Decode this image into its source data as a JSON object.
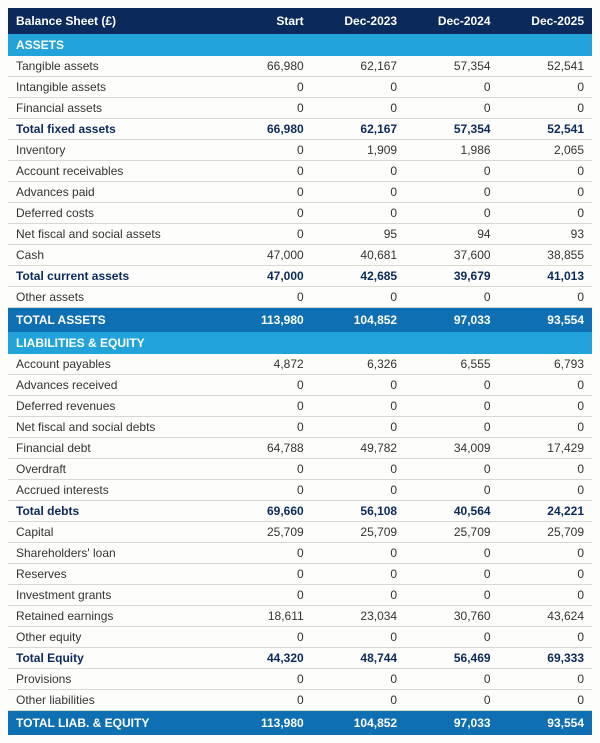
{
  "title": "Balance Sheet (£)",
  "columns": [
    "Start",
    "Dec-2023",
    "Dec-2024",
    "Dec-2025"
  ],
  "colors": {
    "header_bg": "#0b2a5b",
    "section_bg": "#22a3d9",
    "total_bg": "#0e6fb3",
    "subtotal_text": "#0b2a5b",
    "border": "#d8d8d0",
    "page_bg": "#fdfdfb"
  },
  "rows": [
    {
      "type": "section",
      "label": "ASSETS"
    },
    {
      "type": "data",
      "label": "Tangible assets",
      "v": [
        "66,980",
        "62,167",
        "57,354",
        "52,541"
      ]
    },
    {
      "type": "data",
      "label": "Intangible assets",
      "v": [
        "0",
        "0",
        "0",
        "0"
      ]
    },
    {
      "type": "data",
      "label": "Financial assets",
      "v": [
        "0",
        "0",
        "0",
        "0"
      ]
    },
    {
      "type": "subtotal",
      "label": "Total fixed assets",
      "v": [
        "66,980",
        "62,167",
        "57,354",
        "52,541"
      ]
    },
    {
      "type": "data",
      "label": "Inventory",
      "v": [
        "0",
        "1,909",
        "1,986",
        "2,065"
      ]
    },
    {
      "type": "data",
      "label": "Account receivables",
      "v": [
        "0",
        "0",
        "0",
        "0"
      ]
    },
    {
      "type": "data",
      "label": "Advances paid",
      "v": [
        "0",
        "0",
        "0",
        "0"
      ]
    },
    {
      "type": "data",
      "label": "Deferred costs",
      "v": [
        "0",
        "0",
        "0",
        "0"
      ]
    },
    {
      "type": "data",
      "label": "Net fiscal and social assets",
      "v": [
        "0",
        "95",
        "94",
        "93"
      ]
    },
    {
      "type": "data",
      "label": "Cash",
      "v": [
        "47,000",
        "40,681",
        "37,600",
        "38,855"
      ]
    },
    {
      "type": "subtotal",
      "label": "Total current assets",
      "v": [
        "47,000",
        "42,685",
        "39,679",
        "41,013"
      ]
    },
    {
      "type": "data",
      "label": "Other assets",
      "v": [
        "0",
        "0",
        "0",
        "0"
      ]
    },
    {
      "type": "total",
      "label": "TOTAL ASSETS",
      "v": [
        "113,980",
        "104,852",
        "97,033",
        "93,554"
      ]
    },
    {
      "type": "section",
      "label": "LIABILITIES & EQUITY"
    },
    {
      "type": "data",
      "label": "Account payables",
      "v": [
        "4,872",
        "6,326",
        "6,555",
        "6,793"
      ]
    },
    {
      "type": "data",
      "label": "Advances received",
      "v": [
        "0",
        "0",
        "0",
        "0"
      ]
    },
    {
      "type": "data",
      "label": "Deferred revenues",
      "v": [
        "0",
        "0",
        "0",
        "0"
      ]
    },
    {
      "type": "data",
      "label": "Net fiscal and social debts",
      "v": [
        "0",
        "0",
        "0",
        "0"
      ]
    },
    {
      "type": "data",
      "label": "Financial debt",
      "v": [
        "64,788",
        "49,782",
        "34,009",
        "17,429"
      ]
    },
    {
      "type": "data",
      "label": "Overdraft",
      "v": [
        "0",
        "0",
        "0",
        "0"
      ]
    },
    {
      "type": "data",
      "label": "Accrued interests",
      "v": [
        "0",
        "0",
        "0",
        "0"
      ]
    },
    {
      "type": "subtotal",
      "label": "Total debts",
      "v": [
        "69,660",
        "56,108",
        "40,564",
        "24,221"
      ]
    },
    {
      "type": "data",
      "label": "Capital",
      "v": [
        "25,709",
        "25,709",
        "25,709",
        "25,709"
      ]
    },
    {
      "type": "data",
      "label": "Shareholders' loan",
      "v": [
        "0",
        "0",
        "0",
        "0"
      ]
    },
    {
      "type": "data",
      "label": "Reserves",
      "v": [
        "0",
        "0",
        "0",
        "0"
      ]
    },
    {
      "type": "data",
      "label": "Investment grants",
      "v": [
        "0",
        "0",
        "0",
        "0"
      ]
    },
    {
      "type": "data",
      "label": "Retained earnings",
      "v": [
        "18,611",
        "23,034",
        "30,760",
        "43,624"
      ]
    },
    {
      "type": "data",
      "label": "Other equity",
      "v": [
        "0",
        "0",
        "0",
        "0"
      ]
    },
    {
      "type": "subtotal",
      "label": "Total Equity",
      "v": [
        "44,320",
        "48,744",
        "56,469",
        "69,333"
      ]
    },
    {
      "type": "data",
      "label": "Provisions",
      "v": [
        "0",
        "0",
        "0",
        "0"
      ]
    },
    {
      "type": "data",
      "label": "Other liabilities",
      "v": [
        "0",
        "0",
        "0",
        "0"
      ]
    },
    {
      "type": "total",
      "label": "TOTAL LIAB. & EQUITY",
      "v": [
        "113,980",
        "104,852",
        "97,033",
        "93,554"
      ]
    }
  ]
}
